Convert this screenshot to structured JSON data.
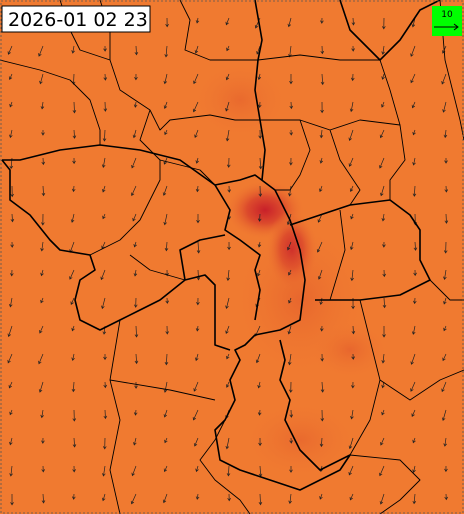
{
  "header": {
    "timestamp": "2026-01 02 23"
  },
  "legend": {
    "label": "10"
  }
}
